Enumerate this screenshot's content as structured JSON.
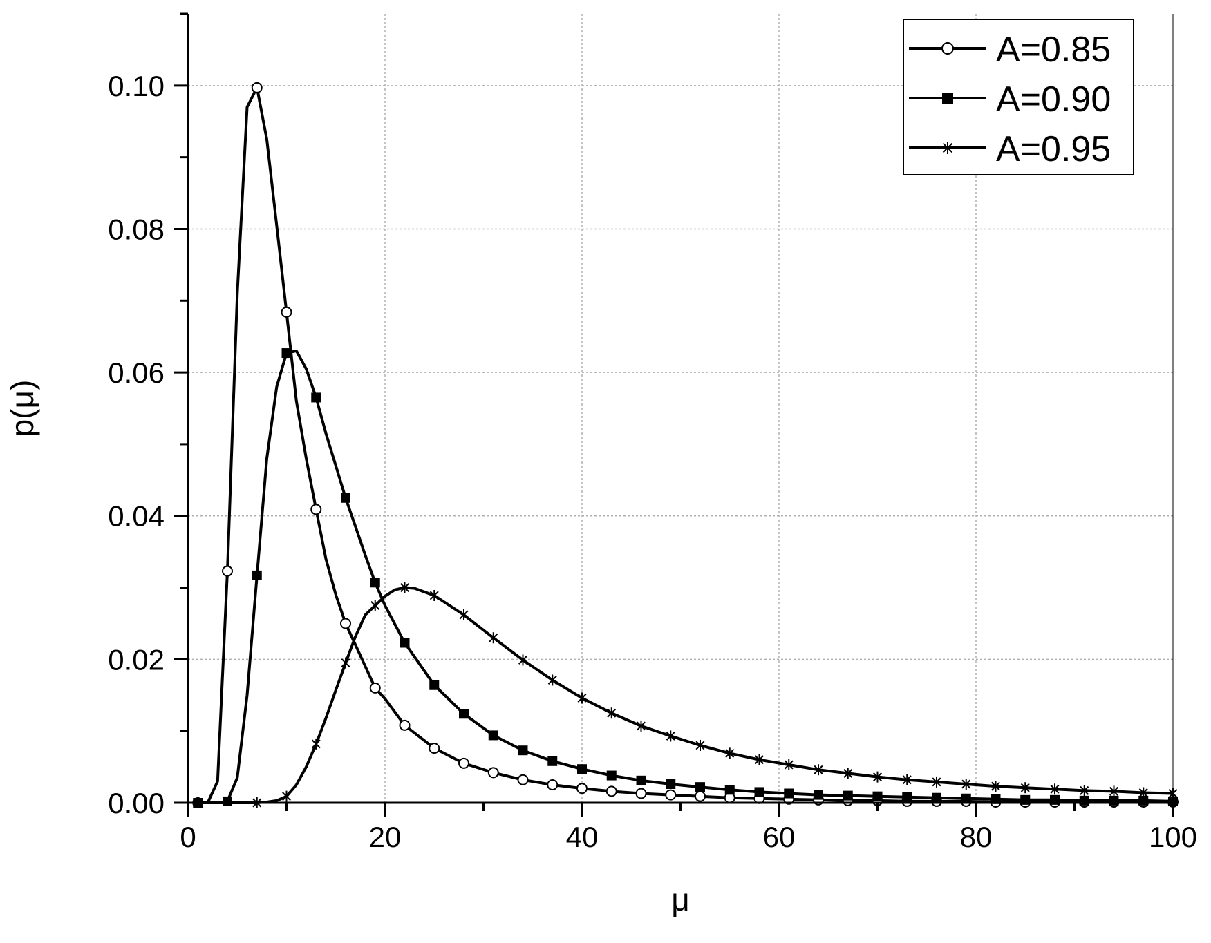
{
  "chart_data": {
    "type": "line",
    "title": "",
    "xlabel": "μ",
    "ylabel": "p(μ)",
    "xlim": [
      0,
      100
    ],
    "ylim": [
      0,
      0.11
    ],
    "xticks": [
      0,
      20,
      40,
      60,
      80,
      100
    ],
    "xtick_labels": [
      "0",
      "20",
      "40",
      "60",
      "80",
      "100"
    ],
    "yticks": [
      0.0,
      0.02,
      0.04,
      0.06,
      0.08,
      0.1
    ],
    "ytick_labels": [
      "0.00",
      "0.02",
      "0.04",
      "0.06",
      "0.08",
      "0.10"
    ],
    "grid": true,
    "legend_position": "top-right",
    "series": [
      {
        "name": "A=0.85",
        "marker": "open-circle",
        "color": "#000000",
        "x": [
          1,
          2,
          3,
          4,
          5,
          6,
          7,
          8,
          9,
          10,
          11,
          12,
          13,
          14,
          15,
          16,
          17,
          18,
          19,
          20,
          22,
          25,
          28,
          31,
          34,
          37,
          40,
          43,
          46,
          49,
          52,
          55,
          58,
          61,
          64,
          67,
          70,
          73,
          76,
          79,
          82,
          85,
          88,
          91,
          94,
          97,
          100
        ],
        "y": [
          0.0,
          0.0,
          0.003,
          0.0323,
          0.071,
          0.097,
          0.0997,
          0.0925,
          0.0805,
          0.0684,
          0.056,
          0.048,
          0.0409,
          0.034,
          0.029,
          0.025,
          0.022,
          0.019,
          0.016,
          0.0145,
          0.0108,
          0.0076,
          0.0055,
          0.0042,
          0.0032,
          0.0025,
          0.002,
          0.0016,
          0.0013,
          0.0011,
          0.0009,
          0.0007,
          0.0006,
          0.0005,
          0.0004,
          0.0003,
          0.0003,
          0.0002,
          0.0002,
          0.0002,
          0.0001,
          0.0001,
          0.0001,
          0.0001,
          0.0001,
          0.0001,
          0.0001
        ],
        "marker_x": [
          1,
          4,
          7,
          10,
          13,
          16,
          19,
          22,
          25,
          28,
          31,
          34,
          37,
          40,
          43,
          46,
          49,
          52,
          55,
          58,
          61,
          64,
          67,
          70,
          73,
          76,
          79,
          82,
          85,
          88,
          91,
          94,
          97,
          100
        ]
      },
      {
        "name": "A=0.90",
        "marker": "filled-square",
        "color": "#000000",
        "x": [
          1,
          2,
          3,
          4,
          5,
          6,
          7,
          8,
          9,
          10,
          11,
          12,
          13,
          14,
          15,
          16,
          17,
          18,
          19,
          20,
          22,
          25,
          28,
          31,
          34,
          37,
          40,
          43,
          46,
          49,
          52,
          55,
          58,
          61,
          64,
          67,
          70,
          73,
          76,
          79,
          82,
          85,
          88,
          91,
          94,
          97,
          100
        ],
        "y": [
          0.0,
          0.0,
          0.0,
          0.0002,
          0.0035,
          0.015,
          0.0317,
          0.048,
          0.058,
          0.0627,
          0.063,
          0.0605,
          0.0565,
          0.0515,
          0.047,
          0.0425,
          0.0385,
          0.0345,
          0.0307,
          0.0275,
          0.0223,
          0.0164,
          0.0124,
          0.0094,
          0.0073,
          0.0058,
          0.0047,
          0.0038,
          0.0031,
          0.0026,
          0.0022,
          0.0018,
          0.0015,
          0.0013,
          0.0011,
          0.001,
          0.0009,
          0.0008,
          0.0007,
          0.0006,
          0.0005,
          0.0004,
          0.0004,
          0.0003,
          0.0003,
          0.0003,
          0.0002
        ],
        "marker_x": [
          1,
          4,
          7,
          10,
          13,
          16,
          19,
          22,
          25,
          28,
          31,
          34,
          37,
          40,
          43,
          46,
          49,
          52,
          55,
          58,
          61,
          64,
          67,
          70,
          73,
          76,
          79,
          82,
          85,
          88,
          91,
          94,
          97,
          100
        ]
      },
      {
        "name": "A=0.95",
        "marker": "asterisk",
        "color": "#000000",
        "x": [
          1,
          4,
          7,
          8,
          9,
          10,
          11,
          12,
          13,
          14,
          15,
          16,
          17,
          18,
          19,
          20,
          21,
          22,
          23,
          25,
          28,
          31,
          34,
          37,
          40,
          43,
          46,
          49,
          52,
          55,
          58,
          61,
          64,
          67,
          70,
          73,
          76,
          79,
          82,
          85,
          88,
          91,
          94,
          97,
          100
        ],
        "y": [
          0.0,
          0.0,
          0.0,
          0.0001,
          0.0003,
          0.0009,
          0.0025,
          0.005,
          0.0082,
          0.0118,
          0.0157,
          0.0195,
          0.0232,
          0.0262,
          0.0275,
          0.0288,
          0.0297,
          0.03,
          0.0299,
          0.0289,
          0.0262,
          0.023,
          0.0199,
          0.0171,
          0.0146,
          0.0125,
          0.0107,
          0.0093,
          0.008,
          0.0069,
          0.006,
          0.0053,
          0.0046,
          0.0041,
          0.0036,
          0.0032,
          0.0029,
          0.0026,
          0.0023,
          0.0021,
          0.0019,
          0.0017,
          0.0016,
          0.0014,
          0.0013
        ],
        "marker_x": [
          1,
          7,
          10,
          13,
          16,
          19,
          22,
          25,
          28,
          31,
          34,
          37,
          40,
          43,
          46,
          49,
          52,
          55,
          58,
          61,
          64,
          67,
          70,
          73,
          76,
          79,
          82,
          85,
          88,
          91,
          94,
          97,
          100
        ]
      }
    ]
  }
}
